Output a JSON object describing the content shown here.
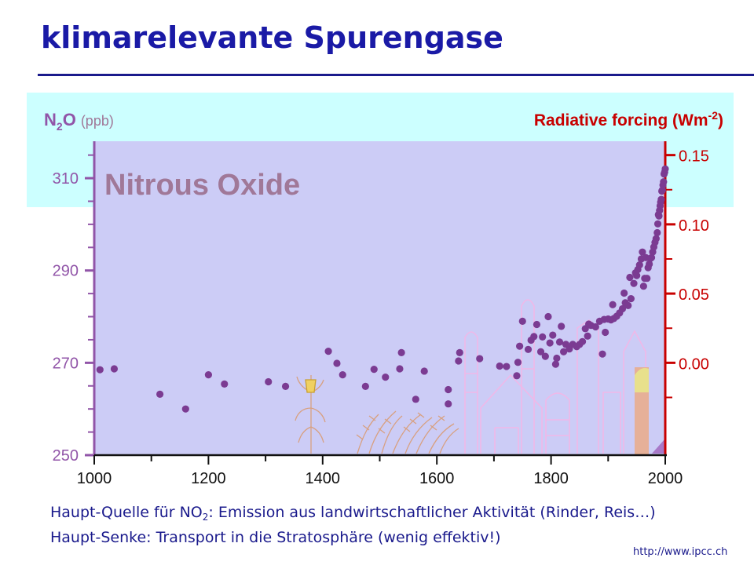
{
  "slide": {
    "title": "klimarelevante Spurengase",
    "caption_line1_prefix": "Haupt-Quelle für NO",
    "caption_line1_sub": "2",
    "caption_line1_suffix": ": Emission aus landwirtschaftlicher Aktivität (Rinder, Reis…)",
    "caption_line2": "Haupt-Senke: Transport in die Stratosphäre (wenig effektiv!)",
    "source": "http://www.ipcc.ch"
  },
  "colors": {
    "title": "#1a1aa6",
    "panel_top": "#ccffff",
    "plot_bg": "#ccccf6",
    "left_axis": "#9155a8",
    "right_axis": "#c80000",
    "points": "#7b3b92",
    "label_gray": "#a07898"
  },
  "chart_data": {
    "type": "scatter",
    "panel_title": "Nitrous Oxide",
    "left_axis": {
      "label_main": "N",
      "label_sub": "2",
      "label_main2": "O",
      "label_unit": "(ppb)",
      "ylim": [
        250,
        318
      ],
      "ticks": [
        250,
        270,
        290,
        310
      ]
    },
    "right_axis": {
      "label_main": "Radiative forcing (Wm",
      "label_sup": "-2",
      "label_end": ")",
      "ticks": [
        0.0,
        0.05,
        0.1,
        0.15
      ],
      "tick_labels": [
        "0.00",
        "0.05",
        "0.10",
        "0.15"
      ],
      "ppb_at_zero": 270,
      "ppb_per_0_05": 15
    },
    "xlim": [
      1000,
      2000
    ],
    "x_ticks": [
      1000,
      1200,
      1400,
      1600,
      1800,
      2000
    ],
    "grid": false,
    "series": [
      {
        "points": [
          [
            1010,
            268.5
          ],
          [
            1035,
            268.7
          ],
          [
            1115,
            263.2
          ],
          [
            1160,
            260.0
          ],
          [
            1200,
            267.4
          ],
          [
            1228,
            265.4
          ],
          [
            1305,
            265.9
          ],
          [
            1335,
            264.9
          ],
          [
            1410,
            272.5
          ],
          [
            1425,
            269.9
          ],
          [
            1435,
            267.4
          ],
          [
            1475,
            264.9
          ],
          [
            1490,
            268.6
          ],
          [
            1510,
            266.9
          ],
          [
            1535,
            268.7
          ],
          [
            1538,
            272.2
          ],
          [
            1563,
            262.1
          ],
          [
            1578,
            268.2
          ],
          [
            1620,
            264.2
          ],
          [
            1620,
            261.1
          ],
          [
            1638,
            270.4
          ],
          [
            1640,
            272.2
          ],
          [
            1675,
            270.9
          ],
          [
            1710,
            269.3
          ],
          [
            1722,
            269.2
          ],
          [
            1740,
            267.2
          ],
          [
            1742,
            270.1
          ],
          [
            1745,
            273.6
          ],
          [
            1750,
            279.0
          ],
          [
            1760,
            272.9
          ],
          [
            1765,
            274.9
          ],
          [
            1770,
            275.7
          ],
          [
            1775,
            278.3
          ],
          [
            1782,
            272.4
          ],
          [
            1785,
            275.6
          ],
          [
            1790,
            271.4
          ],
          [
            1795,
            280.0
          ],
          [
            1798,
            274.3
          ],
          [
            1803,
            276.0
          ],
          [
            1808,
            269.7
          ],
          [
            1810,
            271.0
          ],
          [
            1815,
            274.5
          ],
          [
            1818,
            277.9
          ],
          [
            1822,
            272.4
          ],
          [
            1826,
            274.0
          ],
          [
            1832,
            273.0
          ],
          [
            1838,
            274.0
          ],
          [
            1845,
            273.5
          ],
          [
            1850,
            274.0
          ],
          [
            1855,
            274.6
          ],
          [
            1860,
            277.4
          ],
          [
            1864,
            275.8
          ],
          [
            1866,
            278.4
          ],
          [
            1870,
            278.1
          ],
          [
            1878,
            277.8
          ],
          [
            1885,
            279.0
          ],
          [
            1890,
            271.9
          ],
          [
            1893,
            279.4
          ],
          [
            1895,
            276.6
          ],
          [
            1900,
            279.5
          ],
          [
            1905,
            279.3
          ],
          [
            1908,
            282.6
          ],
          [
            1910,
            279.6
          ],
          [
            1915,
            280.1
          ],
          [
            1920,
            280.8
          ],
          [
            1925,
            281.7
          ],
          [
            1928,
            285.1
          ],
          [
            1930,
            283.0
          ],
          [
            1935,
            282.4
          ],
          [
            1938,
            288.5
          ],
          [
            1940,
            283.9
          ],
          [
            1945,
            287.2
          ],
          [
            1948,
            289.5
          ],
          [
            1950,
            288.9
          ],
          [
            1952,
            290.2
          ],
          [
            1955,
            291.2
          ],
          [
            1958,
            292.5
          ],
          [
            1960,
            294.0
          ],
          [
            1962,
            286.6
          ],
          [
            1964,
            288.3
          ],
          [
            1966,
            292.8
          ],
          [
            1968,
            288.3
          ],
          [
            1970,
            290.6
          ],
          [
            1972,
            291.4
          ],
          [
            1974,
            292.6
          ],
          [
            1976,
            292.8
          ],
          [
            1978,
            294.0
          ],
          [
            1980,
            295.1
          ],
          [
            1982,
            296.1
          ],
          [
            1984,
            296.9
          ],
          [
            1986,
            298.2
          ],
          [
            1987,
            300.1
          ],
          [
            1988,
            302.1
          ],
          [
            1989,
            301.8
          ],
          [
            1990,
            303.0
          ],
          [
            1991,
            304.0
          ],
          [
            1992,
            304.8
          ],
          [
            1993,
            305.4
          ],
          [
            1994,
            307.2
          ],
          [
            1995,
            307.4
          ],
          [
            1996,
            308.5
          ],
          [
            1997,
            309.2
          ],
          [
            1998,
            310.9
          ],
          [
            1999,
            311.3
          ],
          [
            2000,
            312.0
          ]
        ]
      }
    ]
  }
}
